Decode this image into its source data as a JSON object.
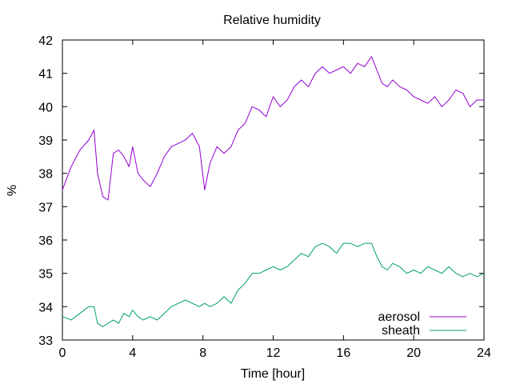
{
  "chart_data": {
    "type": "line",
    "title": "Relative humidity",
    "xlabel": "Time [hour]",
    "ylabel": "%",
    "xlim": [
      0,
      24
    ],
    "ylim": [
      33,
      42
    ],
    "xticks": [
      "0",
      "4",
      "8",
      "12",
      "16",
      "20",
      "24"
    ],
    "yticks": [
      "33",
      "34",
      "35",
      "36",
      "37",
      "38",
      "39",
      "40",
      "41",
      "42"
    ],
    "grid": false,
    "legend_position": "bottom-right",
    "series": [
      {
        "name": "aerosol",
        "color": "#9400d3",
        "x": [
          0,
          0.5,
          1,
          1.5,
          1.8,
          2,
          2.3,
          2.6,
          2.9,
          3.2,
          3.5,
          3.8,
          4,
          4.3,
          4.6,
          5,
          5.4,
          5.8,
          6.2,
          6.6,
          7,
          7.4,
          7.8,
          8.1,
          8.4,
          8.8,
          9.2,
          9.6,
          10,
          10.4,
          10.8,
          11.2,
          11.6,
          12,
          12.4,
          12.8,
          13.2,
          13.6,
          14,
          14.4,
          14.8,
          15.2,
          15.6,
          16,
          16.4,
          16.8,
          17.2,
          17.6,
          17.9,
          18.2,
          18.5,
          18.8,
          19.2,
          19.6,
          20,
          20.4,
          20.8,
          21.2,
          21.6,
          22,
          22.4,
          22.8,
          23.2,
          23.6,
          24
        ],
        "y": [
          37.5,
          38.2,
          38.7,
          39.0,
          39.3,
          38.0,
          37.3,
          37.2,
          38.6,
          38.7,
          38.5,
          38.2,
          38.8,
          38.0,
          37.8,
          37.6,
          38.0,
          38.5,
          38.8,
          38.9,
          39.0,
          39.2,
          38.8,
          37.5,
          38.3,
          38.8,
          38.6,
          38.8,
          39.3,
          39.5,
          40.0,
          39.9,
          39.7,
          40.3,
          40.0,
          40.2,
          40.6,
          40.8,
          40.6,
          41.0,
          41.2,
          41.0,
          41.1,
          41.2,
          41.0,
          41.3,
          41.2,
          41.5,
          41.1,
          40.7,
          40.6,
          40.8,
          40.6,
          40.5,
          40.3,
          40.2,
          40.1,
          40.3,
          40.0,
          40.2,
          40.5,
          40.4,
          40.0,
          40.2,
          40.2
        ]
      },
      {
        "name": "sheath",
        "color": "#009e73",
        "x": [
          0,
          0.5,
          1,
          1.5,
          1.8,
          2,
          2.3,
          2.6,
          2.9,
          3.2,
          3.5,
          3.8,
          4,
          4.3,
          4.6,
          5,
          5.4,
          5.8,
          6.2,
          6.6,
          7,
          7.4,
          7.8,
          8.1,
          8.4,
          8.8,
          9.2,
          9.6,
          10,
          10.4,
          10.8,
          11.2,
          11.6,
          12,
          12.4,
          12.8,
          13.2,
          13.6,
          14,
          14.4,
          14.8,
          15.2,
          15.6,
          16,
          16.4,
          16.8,
          17.2,
          17.6,
          17.9,
          18.2,
          18.5,
          18.8,
          19.2,
          19.6,
          20,
          20.4,
          20.8,
          21.2,
          21.6,
          22,
          22.4,
          22.8,
          23.2,
          23.6,
          24
        ],
        "y": [
          33.7,
          33.6,
          33.8,
          34.0,
          34.0,
          33.5,
          33.4,
          33.5,
          33.6,
          33.5,
          33.8,
          33.7,
          33.9,
          33.7,
          33.6,
          33.7,
          33.6,
          33.8,
          34.0,
          34.1,
          34.2,
          34.1,
          34.0,
          34.1,
          34.0,
          34.1,
          34.3,
          34.1,
          34.5,
          34.7,
          35.0,
          35.0,
          35.1,
          35.2,
          35.1,
          35.2,
          35.4,
          35.6,
          35.5,
          35.8,
          35.9,
          35.8,
          35.6,
          35.9,
          35.9,
          35.8,
          35.9,
          35.9,
          35.5,
          35.2,
          35.1,
          35.3,
          35.2,
          35.0,
          35.1,
          35.0,
          35.2,
          35.1,
          35.0,
          35.2,
          35.0,
          34.9,
          35.0,
          34.9,
          35.0
        ]
      }
    ]
  }
}
